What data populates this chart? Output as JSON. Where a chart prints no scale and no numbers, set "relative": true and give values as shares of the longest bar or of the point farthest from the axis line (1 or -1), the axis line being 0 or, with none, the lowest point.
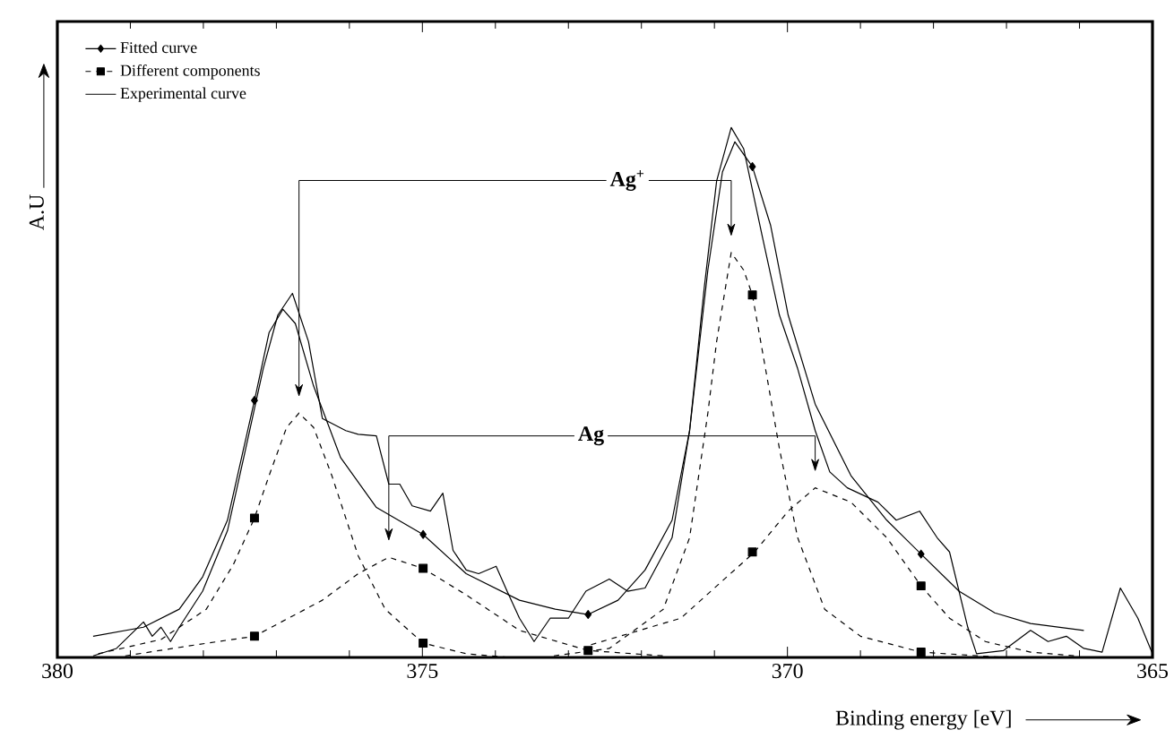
{
  "chart_data": {
    "type": "line",
    "relative": true,
    "xlabel": "Binding energy  [eV]",
    "ylabel": "A.U",
    "xlim": [
      380,
      365
    ],
    "xticks": [
      380,
      375,
      370,
      365
    ],
    "legend": "top left",
    "annotations": [
      {
        "text": "Ag$^{+}$",
        "x": 372.19,
        "y": 0.9
      },
      {
        "text": "Ag",
        "x": 372.69,
        "y": 0.418
      }
    ],
    "series": [
      {
        "name": "Fitted curve",
        "color": "#000000",
        "line_style": "solid",
        "x": [
          379.51,
          378.82,
          378.33,
          378.01,
          377.67,
          377.3,
          377.1,
          376.91,
          376.74,
          376.49,
          376.12,
          375.63,
          374.99,
          374.4,
          373.67,
          373.18,
          372.73,
          372.32,
          371.95,
          371.58,
          371.34,
          371.09,
          370.89,
          370.72,
          370.48,
          370.23,
          369.99,
          369.62,
          369.13,
          368.64,
          368.17,
          367.65,
          367.16,
          366.67,
          365.94
        ],
        "values": [
          0.04,
          0.057,
          0.091,
          0.152,
          0.259,
          0.485,
          0.613,
          0.657,
          0.63,
          0.512,
          0.377,
          0.283,
          0.232,
          0.158,
          0.108,
          0.091,
          0.081,
          0.108,
          0.165,
          0.259,
          0.428,
          0.731,
          0.916,
          0.973,
          0.926,
          0.815,
          0.646,
          0.478,
          0.343,
          0.259,
          0.195,
          0.125,
          0.084,
          0.064,
          0.051
        ]
      },
      {
        "name": "Different components",
        "color": "#000000",
        "line_style": "dashed",
        "x": [
          379.44,
          378.58,
          377.96,
          377.59,
          377.3,
          377.1,
          376.86,
          376.69,
          376.49,
          376.24,
          375.88,
          375.51,
          374.99,
          374.4,
          373.8
        ],
        "values": [
          0.007,
          0.034,
          0.091,
          0.175,
          0.263,
          0.343,
          0.434,
          0.461,
          0.434,
          0.343,
          0.192,
          0.091,
          0.027,
          0.007,
          0
        ]
      },
      {
        "color": "#000000",
        "line_style": "dashed",
        "x": [
          379.07,
          378.09,
          377.3,
          376.37,
          375.88,
          375.46,
          374.99,
          374.4,
          373.67,
          372.73,
          371.7
        ],
        "values": [
          0.003,
          0.024,
          0.04,
          0.108,
          0.158,
          0.189,
          0.168,
          0.118,
          0.051,
          0.013,
          0.003
        ]
      },
      {
        "color": "#000000",
        "line_style": "dashed",
        "x": [
          373.2,
          372.44,
          371.7,
          371.34,
          371.09,
          370.97,
          370.77,
          370.6,
          370.48,
          370.28,
          370.11,
          369.86,
          369.49,
          369.0,
          368.17,
          367.04
        ],
        "values": [
          0.003,
          0.017,
          0.091,
          0.226,
          0.461,
          0.596,
          0.764,
          0.731,
          0.684,
          0.529,
          0.394,
          0.226,
          0.091,
          0.04,
          0.01,
          0
        ]
      },
      {
        "color": "#000000",
        "line_style": "dashed",
        "x": [
          372.69,
          371.46,
          370.45,
          369.99,
          369.62,
          369.13,
          368.64,
          368.17,
          367.78,
          367.29,
          366.67,
          366.06
        ],
        "values": [
          0.024,
          0.074,
          0.199,
          0.276,
          0.32,
          0.293,
          0.226,
          0.135,
          0.074,
          0.03,
          0.01,
          0.003
        ]
      },
      {
        "name": "Experimental curve",
        "color": "#000000",
        "line_style": "solid",
        "x": [
          379.51,
          379.19,
          378.82,
          378.7,
          378.58,
          378.45,
          378.33,
          378.01,
          377.67,
          377.42,
          377.18,
          376.98,
          376.78,
          376.56,
          376.37,
          376.05,
          375.88,
          375.63,
          375.46,
          375.31,
          375.14,
          374.89,
          374.72,
          374.58,
          374.4,
          374.23,
          373.99,
          373.84,
          373.67,
          373.47,
          373.25,
          373.0,
          372.76,
          372.44,
          372.19,
          371.95,
          371.58,
          371.34,
          371.14,
          370.97,
          370.77,
          370.6,
          370.35,
          370.11,
          369.86,
          369.62,
          369.42,
          369.18,
          368.76,
          368.51,
          368.19,
          367.95,
          367.78,
          367.53,
          367.41,
          367.04,
          366.67,
          366.43,
          366.18,
          365.94,
          365.69,
          365.44,
          365.2,
          365.0
        ],
        "values": [
          0.003,
          0.017,
          0.067,
          0.04,
          0.057,
          0.03,
          0.057,
          0.125,
          0.239,
          0.394,
          0.545,
          0.646,
          0.687,
          0.596,
          0.451,
          0.428,
          0.421,
          0.418,
          0.327,
          0.327,
          0.286,
          0.276,
          0.31,
          0.202,
          0.165,
          0.158,
          0.172,
          0.125,
          0.074,
          0.03,
          0.074,
          0.074,
          0.125,
          0.148,
          0.125,
          0.131,
          0.226,
          0.428,
          0.697,
          0.899,
          1.0,
          0.96,
          0.798,
          0.646,
          0.545,
          0.428,
          0.35,
          0.32,
          0.293,
          0.259,
          0.276,
          0.226,
          0.199,
          0.057,
          0.007,
          0.013,
          0.051,
          0.03,
          0.04,
          0.017,
          0.01,
          0.131,
          0.074,
          0.007
        ]
      },
      {
        "type": "scatter",
        "color": "#000000",
        "marker": "diamond",
        "x": [
          377.3,
          374.99,
          372.73,
          370.48,
          368.17
        ],
        "values": [
          0.485,
          0.232,
          0.081,
          0.926,
          0.195
        ]
      },
      {
        "type": "scatter",
        "color": "#000000",
        "marker": "square",
        "x": [
          377.3,
          377.3,
          374.99,
          374.99,
          372.73,
          370.48,
          370.48,
          368.17,
          368.17
        ],
        "values": [
          0.263,
          0.04,
          0.168,
          0.027,
          0.013,
          0.684,
          0.199,
          0.135,
          0.01
        ]
      }
    ]
  }
}
